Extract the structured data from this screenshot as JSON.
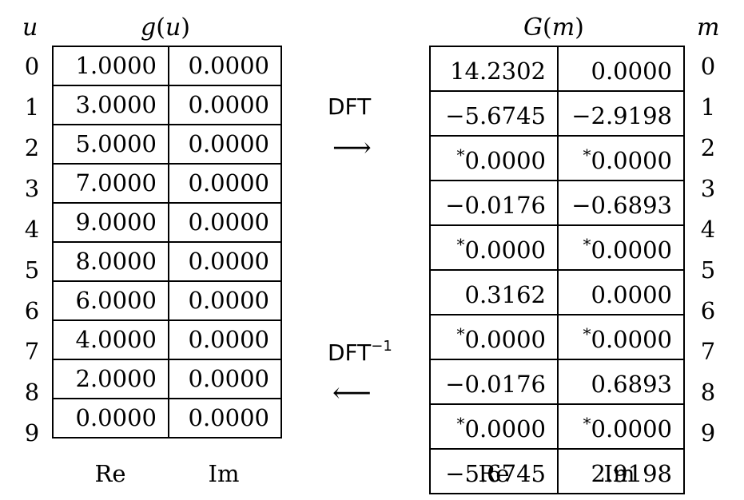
{
  "left": {
    "index_var": "u",
    "title_func": "g",
    "title_arg": "u",
    "indices": [
      "0",
      "1",
      "2",
      "3",
      "4",
      "5",
      "6",
      "7",
      "8",
      "9"
    ],
    "rows": [
      {
        "re": "1.0000",
        "im": "0.0000"
      },
      {
        "re": "3.0000",
        "im": "0.0000"
      },
      {
        "re": "5.0000",
        "im": "0.0000"
      },
      {
        "re": "7.0000",
        "im": "0.0000"
      },
      {
        "re": "9.0000",
        "im": "0.0000"
      },
      {
        "re": "8.0000",
        "im": "0.0000"
      },
      {
        "re": "6.0000",
        "im": "0.0000"
      },
      {
        "re": "4.0000",
        "im": "0.0000"
      },
      {
        "re": "2.0000",
        "im": "0.0000"
      },
      {
        "re": "0.0000",
        "im": "0.0000"
      }
    ],
    "col_re": "Re",
    "col_im": "Im"
  },
  "right": {
    "index_var": "m",
    "title_func": "G",
    "title_arg": "m",
    "indices": [
      "0",
      "1",
      "2",
      "3",
      "4",
      "5",
      "6",
      "7",
      "8",
      "9"
    ],
    "rows": [
      {
        "re_star": "",
        "re": "14.2302",
        "im_star": "",
        "im": "0.0000"
      },
      {
        "re_star": "",
        "re": "−5.6745",
        "im_star": "",
        "im": "−2.9198"
      },
      {
        "re_star": "*",
        "re": "0.0000",
        "im_star": "*",
        "im": "0.0000"
      },
      {
        "re_star": "",
        "re": "−0.0176",
        "im_star": "",
        "im": "−0.6893"
      },
      {
        "re_star": "*",
        "re": "0.0000",
        "im_star": "*",
        "im": "0.0000"
      },
      {
        "re_star": "",
        "re": "0.3162",
        "im_star": "",
        "im": "0.0000"
      },
      {
        "re_star": "*",
        "re": "0.0000",
        "im_star": "*",
        "im": "0.0000"
      },
      {
        "re_star": "",
        "re": "−0.0176",
        "im_star": "",
        "im": "0.6893"
      },
      {
        "re_star": "*",
        "re": "0.0000",
        "im_star": "*",
        "im": "0.0000"
      },
      {
        "re_star": "",
        "re": "−5.6745",
        "im_star": "",
        "im": "2.9198"
      }
    ],
    "col_re": "Re",
    "col_im": "Im"
  },
  "middle": {
    "forward_label": "DFT",
    "forward_arrow": "⟶",
    "inverse_label": "DFT",
    "inverse_exp": "−1",
    "inverse_arrow": "⟵"
  }
}
